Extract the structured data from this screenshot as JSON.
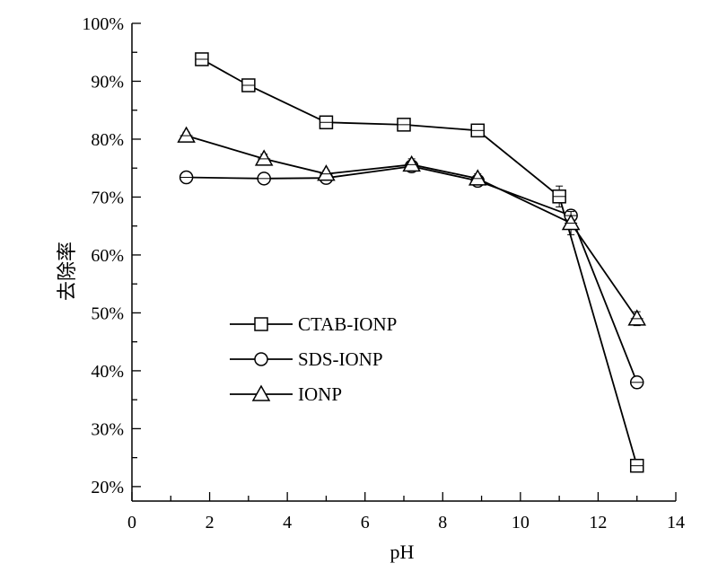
{
  "chart_data": {
    "type": "line",
    "title": "",
    "xlabel": "pH",
    "ylabel": "去除率",
    "xlim": [
      0,
      14
    ],
    "ylim": [
      0.175,
      1.0
    ],
    "xticks": [
      0,
      2,
      4,
      6,
      8,
      10,
      12,
      14
    ],
    "yticks": [
      0.2,
      0.3,
      0.4,
      0.5,
      0.6,
      0.7,
      0.8,
      0.9,
      1.0
    ],
    "xtick_labels": [
      "0",
      "2",
      "4",
      "6",
      "8",
      "10",
      "12",
      "14"
    ],
    "ytick_labels": [
      "20%",
      "30%",
      "40%",
      "50%",
      "60%",
      "70%",
      "80%",
      "90%",
      "100%"
    ],
    "grid": false,
    "legend_position": "lower-left",
    "series": [
      {
        "name": "CTAB-IONP",
        "marker": "square",
        "x": [
          1.8,
          3.0,
          5.0,
          7.0,
          8.9,
          11.0,
          13.0
        ],
        "y": [
          0.938,
          0.893,
          0.829,
          0.825,
          0.815,
          0.701,
          0.236
        ],
        "err": [
          0.008,
          0.01,
          0.005,
          0.008,
          0.008,
          0.018,
          0.008
        ]
      },
      {
        "name": "SDS-IONP",
        "marker": "circle",
        "x": [
          1.4,
          3.4,
          5.0,
          7.2,
          8.9,
          11.3,
          13.0
        ],
        "y": [
          0.734,
          0.732,
          0.733,
          0.753,
          0.728,
          0.668,
          0.38
        ],
        "err": [
          0.006,
          0.006,
          0.006,
          0.008,
          0.008,
          0.01,
          0.01
        ]
      },
      {
        "name": "IONP",
        "marker": "triangle",
        "x": [
          1.4,
          3.4,
          5.0,
          7.2,
          8.9,
          11.3,
          13.0
        ],
        "y": [
          0.806,
          0.766,
          0.74,
          0.756,
          0.732,
          0.655,
          0.49
        ],
        "err": [
          0.006,
          0.008,
          0.006,
          0.01,
          0.008,
          0.02,
          0.012
        ]
      }
    ]
  }
}
